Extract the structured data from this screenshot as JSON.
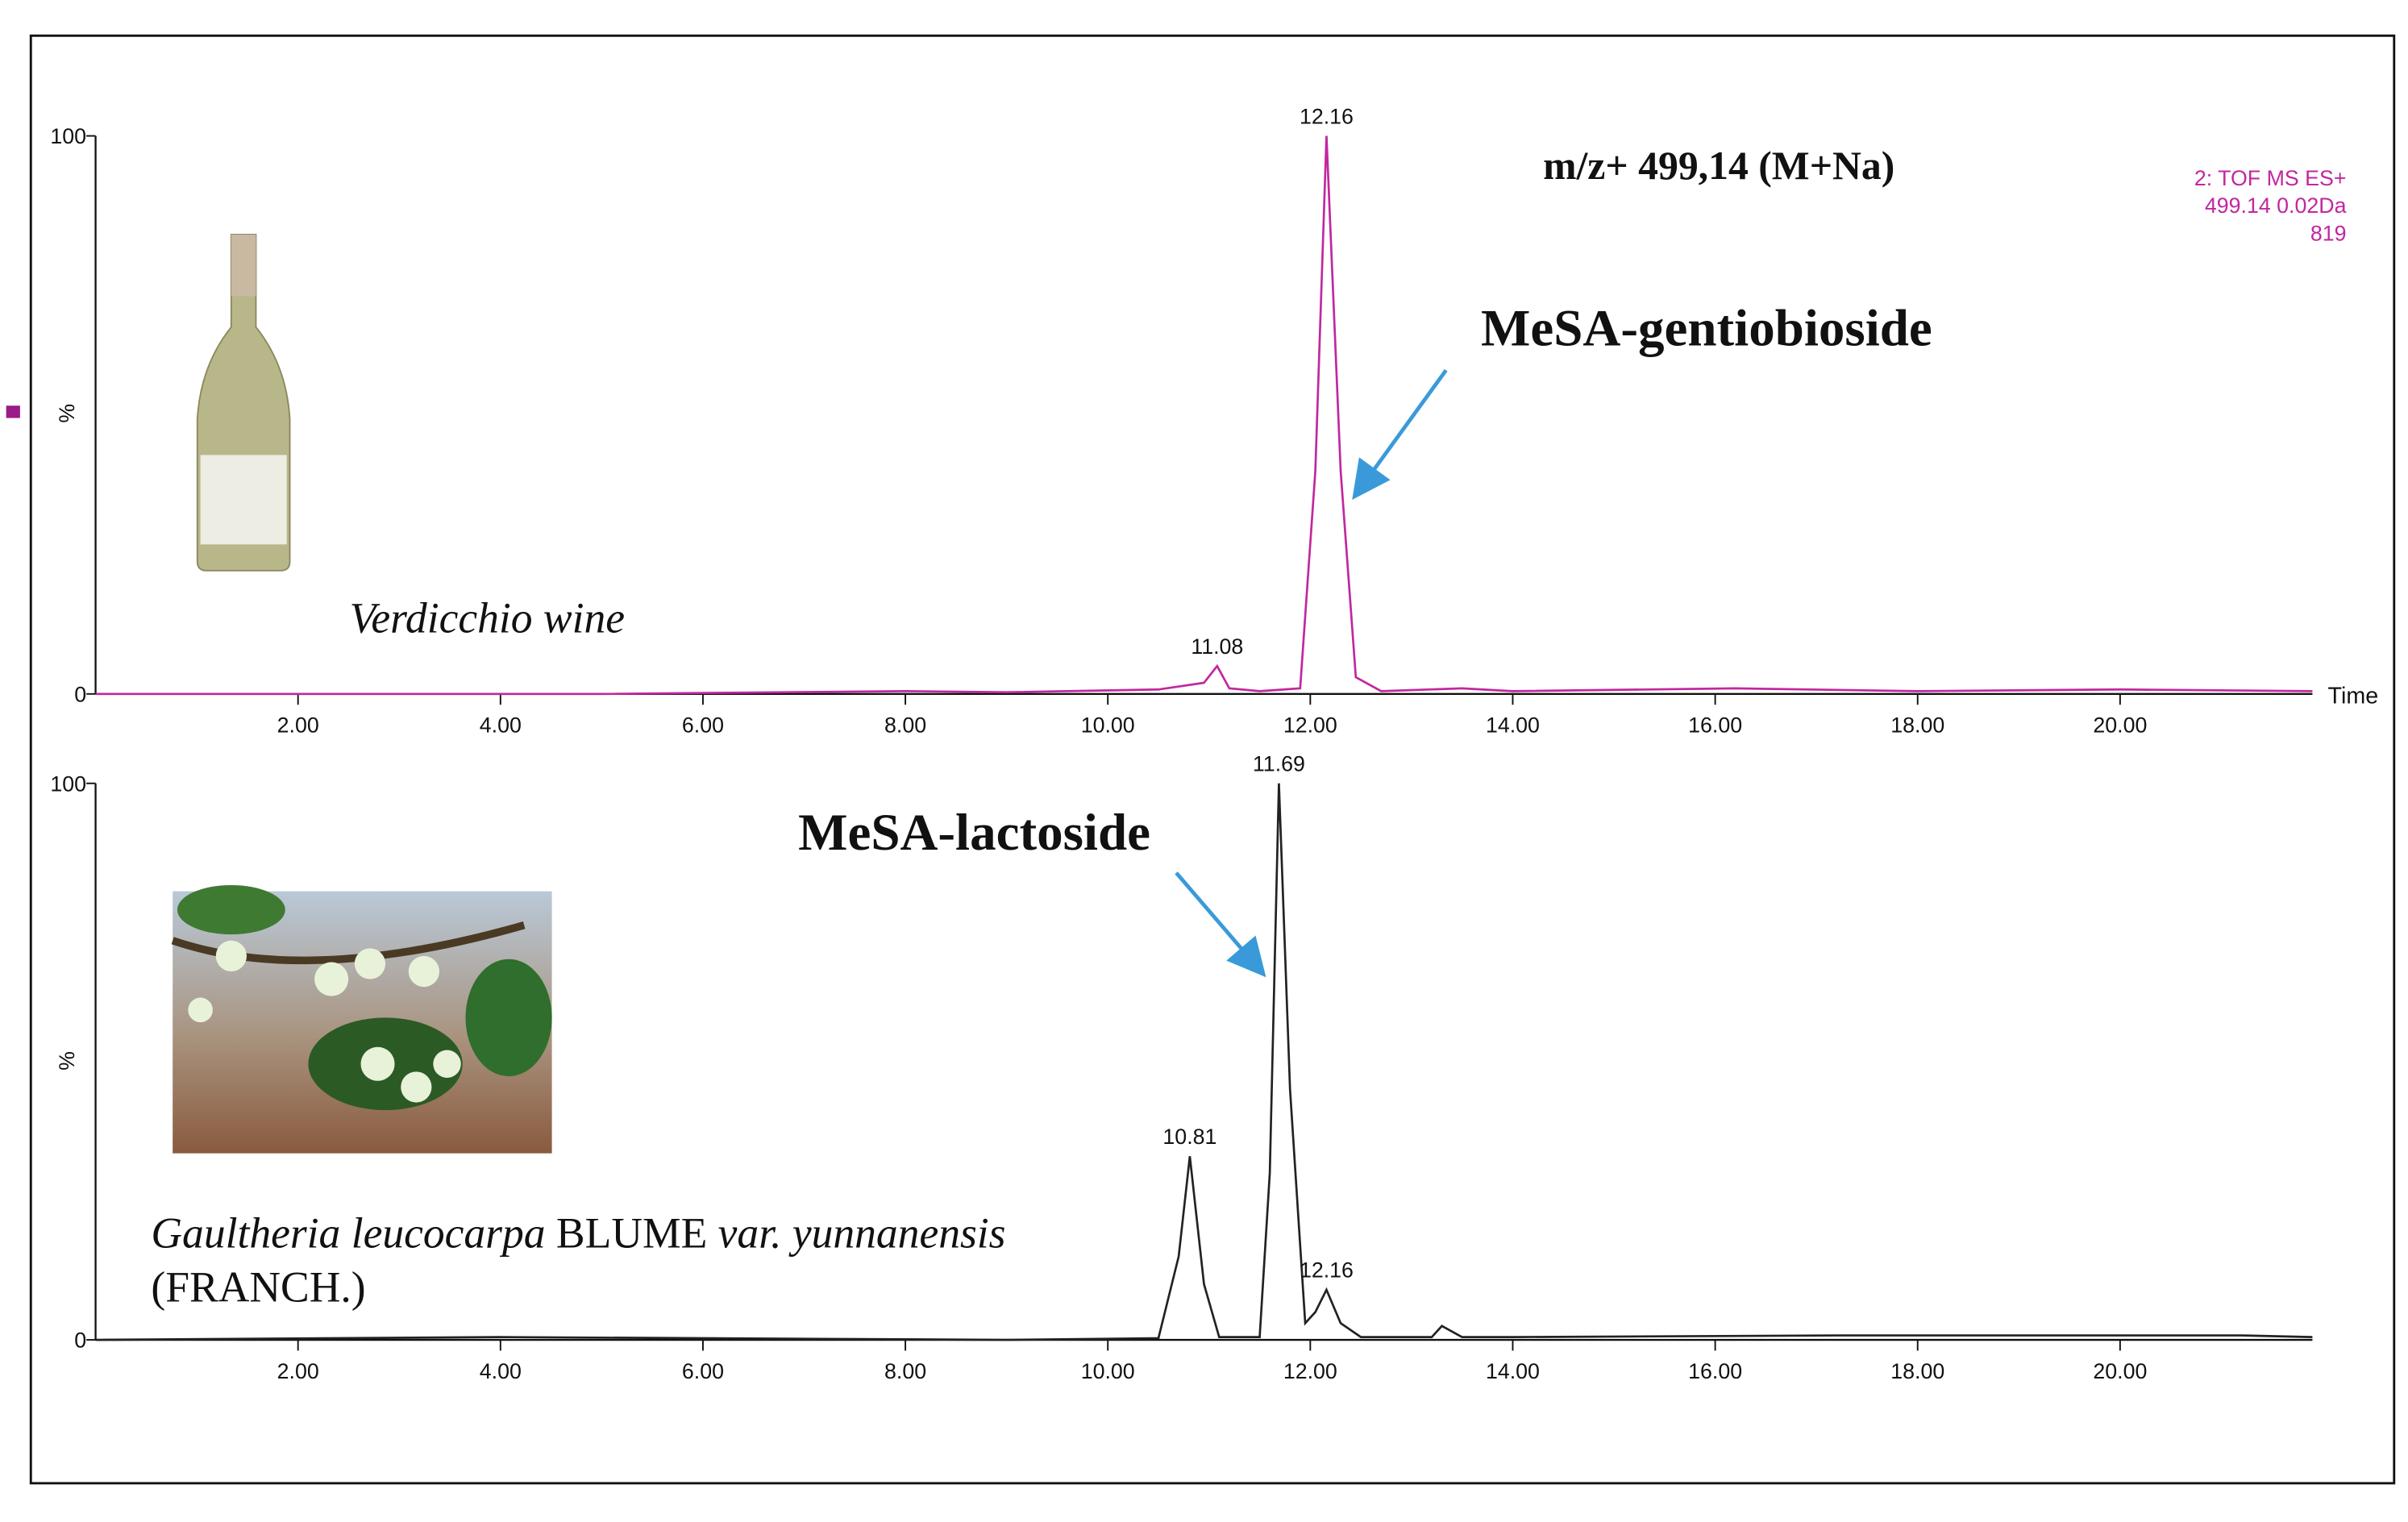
{
  "chart_data": [
    {
      "type": "line",
      "title": "m/z+ 499,14 (M+Na)",
      "instrument": [
        "2: TOF MS ES+",
        "499.14 0.02Da",
        "819"
      ],
      "compound": "MeSA-gentiobioside",
      "sample": "Verdicchio wine",
      "x_label": "Time",
      "y_label": "%",
      "xlim": [
        0,
        21.9
      ],
      "ylim": [
        0,
        100
      ],
      "xticks": [
        {
          "value": 2,
          "label": "2.00"
        },
        {
          "value": 4,
          "label": "4.00"
        },
        {
          "value": 6,
          "label": "6.00"
        },
        {
          "value": 8,
          "label": "8.00"
        },
        {
          "value": 10,
          "label": "10.00"
        },
        {
          "value": 12,
          "label": "12.00"
        },
        {
          "value": 14,
          "label": "14.00"
        },
        {
          "value": 16,
          "label": "16.00"
        },
        {
          "value": 18,
          "label": "18.00"
        },
        {
          "value": 20,
          "label": "20.00"
        }
      ],
      "yticks": [
        0,
        100
      ],
      "series": [
        {
          "color": "#c2279f",
          "x": [
            0,
            5,
            8,
            9,
            10.5,
            10.95,
            11.08,
            11.2,
            11.5,
            11.9,
            12.05,
            12.16,
            12.3,
            12.45,
            12.7,
            13.5,
            14,
            16.2,
            18,
            20,
            21.9
          ],
          "values": [
            0,
            0,
            0.5,
            0.3,
            0.8,
            2,
            5,
            1,
            0.5,
            1,
            40,
            100,
            40,
            3,
            0.5,
            1,
            0.5,
            1,
            0.5,
            0.8,
            0.5
          ]
        }
      ],
      "peak_labels": [
        12.16,
        11.08
      ]
    },
    {
      "type": "line",
      "compound": "MeSA-lactoside",
      "sample": [
        "Gaultheria leucocarpa",
        "BLUME",
        "var. yunnanensis",
        "(FRANCH.)"
      ],
      "y_label": "%",
      "xlim": [
        0,
        21.9
      ],
      "ylim": [
        0,
        100
      ],
      "xticks": [
        {
          "value": 2,
          "label": "2.00"
        },
        {
          "value": 4,
          "label": "4.00"
        },
        {
          "value": 6,
          "label": "6.00"
        },
        {
          "value": 8,
          "label": "8.00"
        },
        {
          "value": 10,
          "label": "10.00"
        },
        {
          "value": 12,
          "label": "12.00"
        },
        {
          "value": 14,
          "label": "14.00"
        },
        {
          "value": 16,
          "label": "16.00"
        },
        {
          "value": 18,
          "label": "18.00"
        },
        {
          "value": 20,
          "label": "20.00"
        }
      ],
      "yticks": [
        0,
        100
      ],
      "series": [
        {
          "color": "#222222",
          "x": [
            0,
            4,
            9,
            10.5,
            10.7,
            10.81,
            10.95,
            11.1,
            11.5,
            11.6,
            11.69,
            11.8,
            11.95,
            12.05,
            12.16,
            12.3,
            12.5,
            13.2,
            13.3,
            13.5,
            14,
            17.2,
            21.2,
            21.9
          ],
          "values": [
            0,
            0.5,
            0,
            0.3,
            15,
            33,
            10,
            0.5,
            0.5,
            30,
            100,
            45,
            3,
            5,
            9,
            3,
            0.5,
            0.5,
            2.5,
            0.5,
            0.5,
            0.8,
            0.8,
            0.5
          ]
        }
      ],
      "peak_labels": [
        11.69,
        10.81,
        12.16
      ]
    }
  ]
}
